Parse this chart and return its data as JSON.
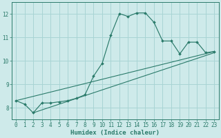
{
  "bg_color": "#ceeaea",
  "grid_color": "#a8d4d4",
  "line_color": "#2a7a6a",
  "xlabel": "Humidex (Indice chaleur)",
  "xlim": [
    -0.5,
    23.5
  ],
  "ylim": [
    7.5,
    12.5
  ],
  "yticks": [
    8,
    9,
    10,
    11,
    12
  ],
  "xticks": [
    0,
    1,
    2,
    3,
    4,
    5,
    6,
    7,
    8,
    9,
    10,
    11,
    12,
    13,
    14,
    15,
    16,
    17,
    18,
    19,
    20,
    21,
    22,
    23
  ],
  "series1": {
    "x": [
      0,
      1,
      2,
      3,
      4,
      5,
      6,
      7,
      8,
      9,
      10,
      11,
      12,
      13,
      14,
      15,
      16,
      17,
      18,
      19,
      20,
      21,
      22,
      23
    ],
    "y": [
      8.3,
      8.15,
      7.78,
      8.2,
      8.2,
      8.25,
      8.3,
      8.4,
      8.55,
      9.35,
      9.9,
      11.1,
      12.02,
      11.9,
      12.05,
      12.05,
      11.65,
      10.85,
      10.85,
      10.3,
      10.8,
      10.8,
      10.35,
      10.4
    ]
  },
  "series2_line": {
    "x": [
      0,
      23
    ],
    "y": [
      8.3,
      10.4
    ]
  },
  "series3_line": {
    "x": [
      2,
      23
    ],
    "y": [
      7.78,
      10.35
    ]
  }
}
